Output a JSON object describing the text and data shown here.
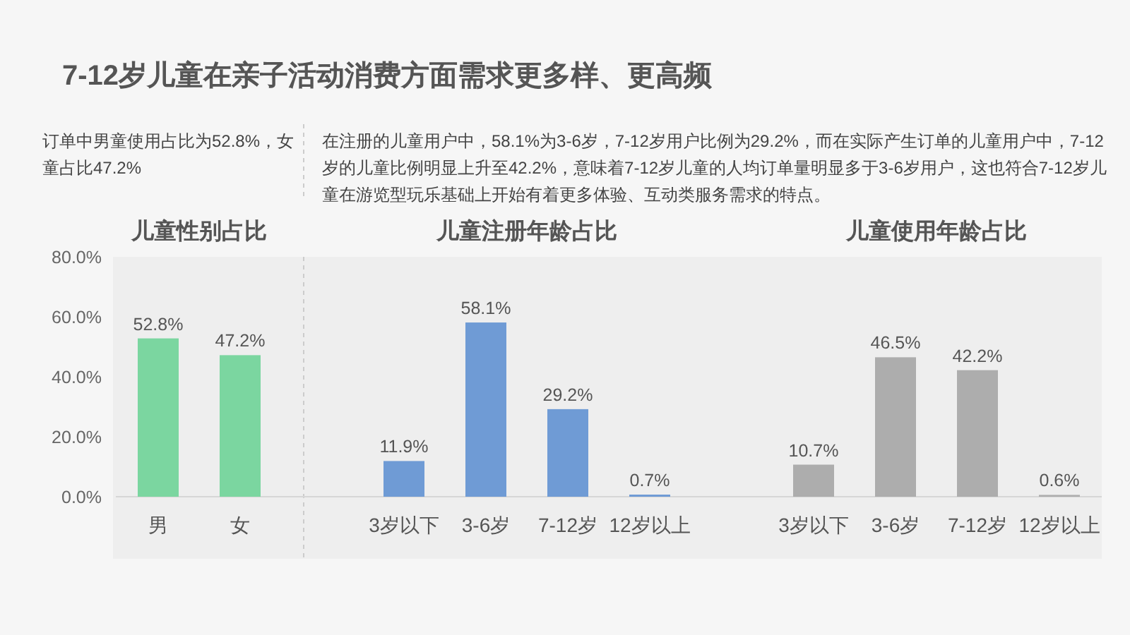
{
  "chart_data": [
    {
      "type": "other",
      "title": "7-12岁儿童在亲子活动消费方面需求更多样、更高频",
      "annotations": [
        "订单中男童使用占比为52.8%，女童占比47.2%",
        "在注册的儿童用户中，58.1%为3-6岁，7-12岁用户比例为29.2%，而在实际产生订单的儿童用户中，7-12岁的儿童比例明显上升至42.2%，意味着7-12岁儿童的人均订单量明显多于3-6岁用户，这也符合7-12岁儿童在游览型玩乐基础上开始有着更多体验、互动类服务需求的特点。"
      ]
    },
    {
      "type": "bar",
      "title": "儿童性别占比",
      "categories": [
        "男",
        "女"
      ],
      "values": [
        52.8,
        47.2
      ],
      "value_labels": [
        "52.8%",
        "47.2%"
      ],
      "color": "#7bd6a0",
      "ylim": [
        0,
        80
      ],
      "yticks": [
        {
          "value": 0,
          "label": "0.0%"
        },
        {
          "value": 20,
          "label": "20.0%"
        },
        {
          "value": 40,
          "label": "40.0%"
        },
        {
          "value": 60,
          "label": "60.0%"
        },
        {
          "value": 80,
          "label": "80.0%"
        }
      ]
    },
    {
      "type": "bar",
      "title": "儿童注册年龄占比",
      "categories": [
        "3岁以下",
        "3-6岁",
        "7-12岁",
        "12岁以上"
      ],
      "values": [
        11.9,
        58.1,
        29.2,
        0.7
      ],
      "value_labels": [
        "11.9%",
        "58.1%",
        "29.2%",
        "0.7%"
      ],
      "color": "#6f9bd5",
      "ylim": [
        0,
        80
      ],
      "tick_labels": "x"
    },
    {
      "type": "bar",
      "title": "儿童使用年龄占比",
      "categories": [
        "3岁以下",
        "3-6岁",
        "7-12岁",
        "12岁以上"
      ],
      "values": [
        10.7,
        46.5,
        42.2,
        0.6
      ],
      "value_labels": [
        "10.7%",
        "46.5%",
        "42.2%",
        "0.6%"
      ],
      "color": "#adadad",
      "ylim": [
        0,
        80
      ],
      "tick_labels": "x"
    }
  ]
}
